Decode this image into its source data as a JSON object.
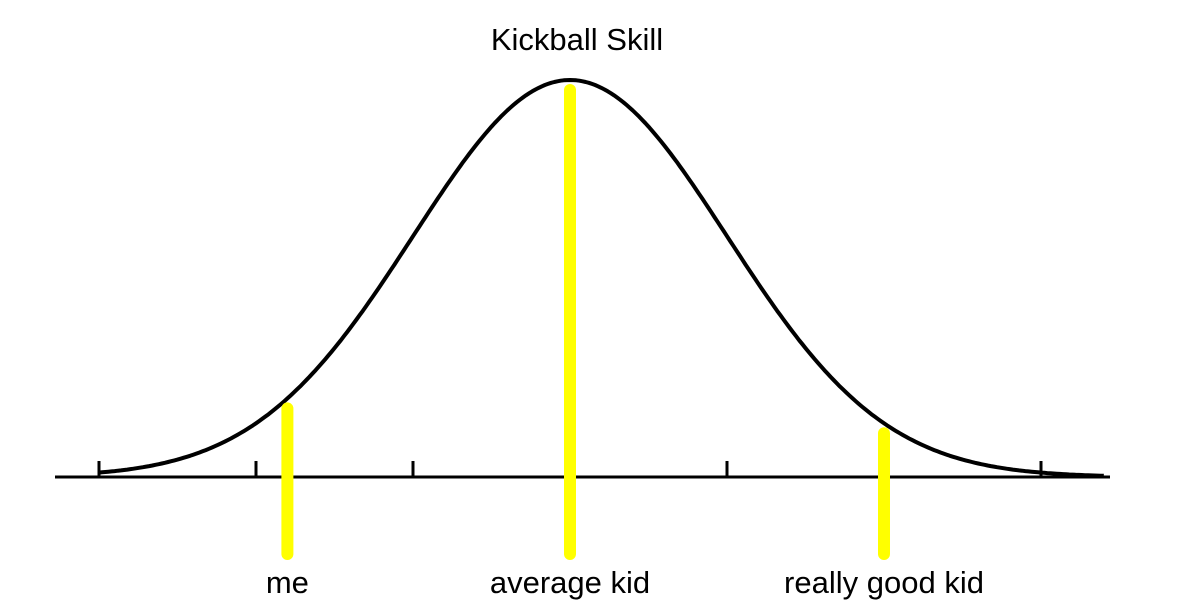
{
  "chart_data": {
    "type": "line",
    "title": "Kickball Skill",
    "xlabel": "",
    "ylabel": "",
    "xlim": [
      -3.0,
      3.4
    ],
    "ylim": [
      0,
      1
    ],
    "grid": false,
    "legend": "none",
    "curve": {
      "distribution": "normal",
      "mean": 0,
      "sd": 1,
      "color": "#000000"
    },
    "ticks": [
      -3,
      -2,
      -1,
      1,
      3
    ],
    "markers": [
      {
        "label": "me",
        "x": -1.8,
        "color": "#ffff00"
      },
      {
        "label": "average kid",
        "x": 0,
        "color": "#ffff00"
      },
      {
        "label": "really good kid",
        "x": 2.0,
        "color": "#ffff00"
      }
    ]
  }
}
